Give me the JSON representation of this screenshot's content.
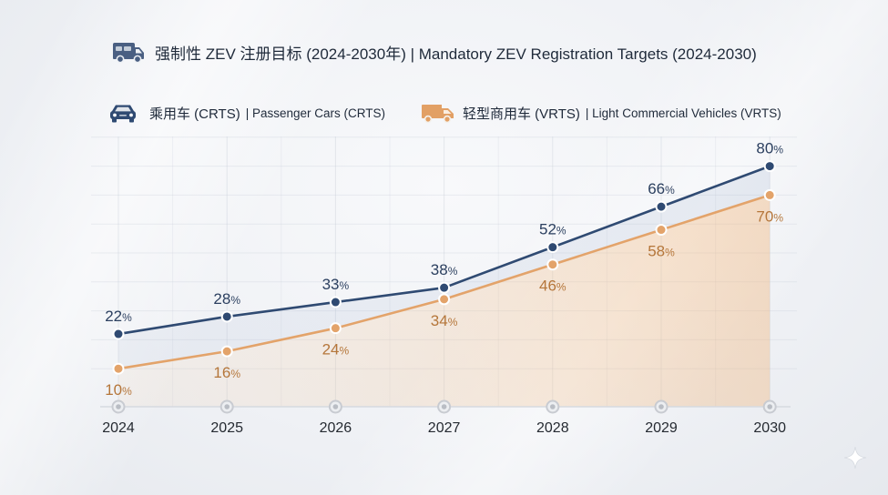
{
  "title_icon": "van-icon",
  "decor_icon": "sparkle-icon",
  "chart_data": {
    "type": "line",
    "title": "强制性 ZEV 注册目标 (2024-2030年) | Mandatory ZEV Registration Targets (2024-2030)",
    "categories": [
      "2024",
      "2025",
      "2026",
      "2027",
      "2028",
      "2029",
      "2030"
    ],
    "series": [
      {
        "name": "乘用车 (CRTS)",
        "name_en": "| Passenger Cars (CRTS)",
        "icon": "car-icon",
        "color": "#2f4a72",
        "label_color": "#2b3f5f",
        "label_position": "above",
        "values": [
          22,
          28,
          33,
          38,
          52,
          66,
          80
        ]
      },
      {
        "name": "轻型商用车 (VRTS)",
        "name_en": "| Light Commercial Vehicles (VRTS)",
        "icon": "van-icon",
        "color": "#e3a36a",
        "label_color": "#b5763a",
        "label_position": "below",
        "values": [
          10,
          16,
          24,
          34,
          46,
          58,
          70
        ]
      }
    ],
    "value_suffix": "%",
    "xlabel": "",
    "ylabel": "",
    "ylim": [
      0,
      100
    ],
    "grid": true,
    "legend_position": "top-left"
  }
}
